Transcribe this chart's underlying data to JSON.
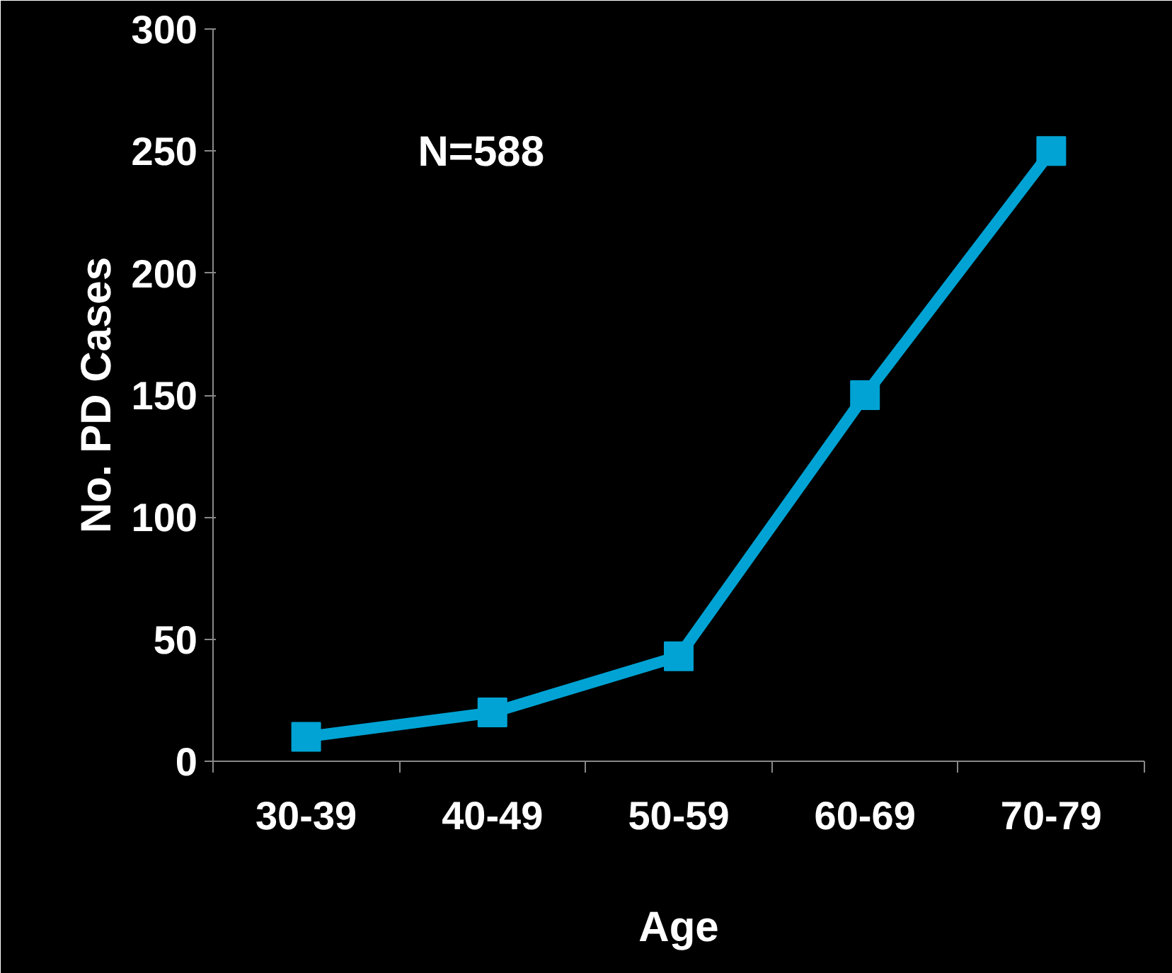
{
  "chart_data": {
    "type": "line",
    "xlabel": "Age",
    "ylabel": "No. PD Cases",
    "categories": [
      "30-39",
      "40-49",
      "50-59",
      "60-69",
      "70-79"
    ],
    "series": [
      {
        "color": "#00a3d4",
        "values": [
          10,
          20,
          43,
          150,
          250
        ]
      }
    ],
    "ylim": [
      0,
      300
    ],
    "yticks": [
      0,
      50,
      100,
      150,
      200,
      250,
      300
    ],
    "annotations": [
      "N=588"
    ],
    "marker": "square",
    "line_style": "solid",
    "grid": false
  }
}
